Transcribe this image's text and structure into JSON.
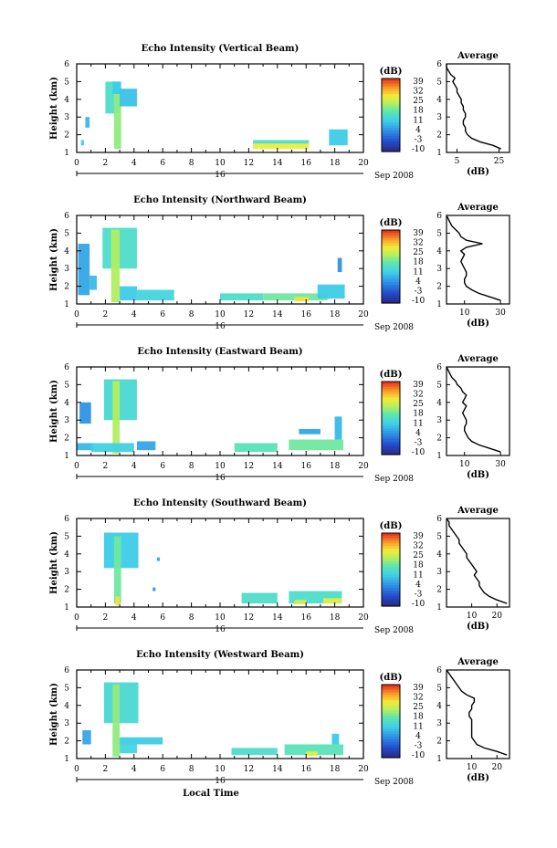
{
  "chart_data": [
    {
      "type": "heatmap",
      "title": "Echo Intensity (Vertical Beam)",
      "ylabel": "Height (km)",
      "xlabel": "",
      "x_ticks": [
        "0",
        "2",
        "4",
        "6",
        "8",
        "10",
        "12",
        "14",
        "16",
        "18",
        "20"
      ],
      "y_ticks": [
        "1",
        "2",
        "3",
        "4",
        "5",
        "6"
      ],
      "date_marker": "16",
      "date_label": "Sep 2008",
      "xlim": [
        0,
        20
      ],
      "ylim": [
        1,
        6
      ],
      "colorbar": {
        "unit": "(dB)",
        "ticks": [
          "39",
          "32",
          "25",
          "18",
          "11",
          "4",
          "-3",
          "-10"
        ],
        "range": [
          -10,
          39
        ]
      },
      "regions": [
        {
          "x": [
            2.0,
            3.0
          ],
          "y": [
            3.2,
            5.0
          ],
          "value": 14
        },
        {
          "x": [
            2.6,
            3.1
          ],
          "y": [
            1.2,
            4.3
          ],
          "value": 20
        },
        {
          "x": [
            2.5,
            3.1
          ],
          "y": [
            4.3,
            5.0
          ],
          "value": 10
        },
        {
          "x": [
            3.0,
            4.2
          ],
          "y": [
            3.6,
            4.6
          ],
          "value": 9
        },
        {
          "x": [
            0.6,
            0.9
          ],
          "y": [
            2.4,
            3.0
          ],
          "value": 8
        },
        {
          "x": [
            0.3,
            0.5
          ],
          "y": [
            1.4,
            1.7
          ],
          "value": 10
        },
        {
          "x": [
            12.3,
            16.2
          ],
          "y": [
            1.2,
            1.5
          ],
          "value": 27
        },
        {
          "x": [
            12.3,
            16.2
          ],
          "y": [
            1.5,
            1.7
          ],
          "value": 14
        },
        {
          "x": [
            17.6,
            18.9
          ],
          "y": [
            1.4,
            2.3
          ],
          "value": 10
        }
      ],
      "average": {
        "title": "Average",
        "xlabel": "(dB)",
        "x_ticks": [
          "5",
          "25"
        ],
        "xlim": [
          0,
          30
        ],
        "profile_height": [
          1.2,
          1.4,
          1.6,
          1.8,
          2.0,
          2.2,
          2.4,
          2.6,
          2.8,
          3.0,
          3.2,
          3.4,
          3.6,
          3.8,
          4.0,
          4.2,
          4.4,
          4.6,
          4.8,
          5.0,
          5.2,
          5.4,
          5.6,
          5.8,
          6.0
        ],
        "profile_db": [
          26,
          22,
          16,
          12,
          10,
          9,
          9,
          8,
          8,
          9,
          9,
          8,
          8,
          7,
          7,
          6,
          5,
          5,
          4,
          3,
          4,
          2,
          1,
          0,
          0
        ]
      }
    },
    {
      "type": "heatmap",
      "title": "Echo Intensity (Northward Beam)",
      "ylabel": "Height (km)",
      "xlabel": "",
      "x_ticks": [
        "0",
        "2",
        "4",
        "6",
        "8",
        "10",
        "12",
        "14",
        "16",
        "18",
        "20"
      ],
      "y_ticks": [
        "1",
        "2",
        "3",
        "4",
        "5",
        "6"
      ],
      "date_marker": "16",
      "date_label": "Sep 2008",
      "xlim": [
        0,
        20
      ],
      "ylim": [
        1,
        6
      ],
      "colorbar": {
        "unit": "(dB)",
        "ticks": [
          "39",
          "32",
          "25",
          "18",
          "11",
          "4",
          "-3",
          "-10"
        ],
        "range": [
          -10,
          39
        ]
      },
      "regions": [
        {
          "x": [
            0.1,
            0.9
          ],
          "y": [
            1.5,
            4.4
          ],
          "value": 6
        },
        {
          "x": [
            0.9,
            1.4
          ],
          "y": [
            1.8,
            2.6
          ],
          "value": 8
        },
        {
          "x": [
            1.8,
            4.2
          ],
          "y": [
            3.0,
            5.3
          ],
          "value": 14
        },
        {
          "x": [
            2.4,
            3.0
          ],
          "y": [
            1.1,
            5.2
          ],
          "value": 22
        },
        {
          "x": [
            3.0,
            4.2
          ],
          "y": [
            1.2,
            2.0
          ],
          "value": 10
        },
        {
          "x": [
            4.2,
            6.8
          ],
          "y": [
            1.2,
            1.8
          ],
          "value": 12
        },
        {
          "x": [
            10.0,
            13.0
          ],
          "y": [
            1.2,
            1.6
          ],
          "value": 14
        },
        {
          "x": [
            13.0,
            17.5
          ],
          "y": [
            1.2,
            1.6
          ],
          "value": 18
        },
        {
          "x": [
            15.2,
            16.2
          ],
          "y": [
            1.15,
            1.4
          ],
          "value": 28
        },
        {
          "x": [
            16.8,
            18.7
          ],
          "y": [
            1.3,
            2.1
          ],
          "value": 10
        },
        {
          "x": [
            18.2,
            18.5
          ],
          "y": [
            2.8,
            3.6
          ],
          "value": 4
        }
      ],
      "average": {
        "title": "Average",
        "xlabel": "(dB)",
        "x_ticks": [
          "10",
          "30"
        ],
        "xlim": [
          0,
          35
        ],
        "profile_height": [
          1.2,
          1.4,
          1.6,
          1.8,
          2.0,
          2.2,
          2.4,
          2.6,
          2.8,
          3.0,
          3.2,
          3.4,
          3.6,
          3.8,
          4.0,
          4.2,
          4.4,
          4.6,
          4.8,
          5.0,
          5.2,
          5.4,
          5.6,
          5.8,
          6.0
        ],
        "profile_db": [
          30,
          24,
          18,
          14,
          11,
          10,
          10,
          11,
          11,
          10,
          9,
          8,
          9,
          10,
          8,
          11,
          20,
          11,
          8,
          7,
          5,
          3,
          2,
          1,
          0
        ]
      }
    },
    {
      "type": "heatmap",
      "title": "Echo Intensity (Eastward Beam)",
      "ylabel": "Height (km)",
      "xlabel": "",
      "x_ticks": [
        "0",
        "2",
        "4",
        "6",
        "8",
        "10",
        "12",
        "14",
        "16",
        "18",
        "20"
      ],
      "y_ticks": [
        "1",
        "2",
        "3",
        "4",
        "5",
        "6"
      ],
      "date_marker": "16",
      "date_label": "Sep 2008",
      "xlim": [
        0,
        20
      ],
      "ylim": [
        1,
        6
      ],
      "colorbar": {
        "unit": "(dB)",
        "ticks": [
          "39",
          "32",
          "25",
          "18",
          "11",
          "4",
          "-3",
          "-10"
        ],
        "range": [
          -10,
          39
        ]
      },
      "regions": [
        {
          "x": [
            0.2,
            1.0
          ],
          "y": [
            2.8,
            4.0
          ],
          "value": 4
        },
        {
          "x": [
            0.0,
            1.2
          ],
          "y": [
            1.3,
            1.7
          ],
          "value": 8
        },
        {
          "x": [
            1.9,
            4.2
          ],
          "y": [
            3.0,
            5.3
          ],
          "value": 13
        },
        {
          "x": [
            2.5,
            3.0
          ],
          "y": [
            1.1,
            5.2
          ],
          "value": 22
        },
        {
          "x": [
            1.0,
            4.0
          ],
          "y": [
            1.2,
            1.7
          ],
          "value": 11
        },
        {
          "x": [
            4.2,
            5.5
          ],
          "y": [
            1.3,
            1.8
          ],
          "value": 6
        },
        {
          "x": [
            11.0,
            14.0
          ],
          "y": [
            1.2,
            1.7
          ],
          "value": 16
        },
        {
          "x": [
            14.8,
            18.6
          ],
          "y": [
            1.3,
            1.9
          ],
          "value": 18
        },
        {
          "x": [
            18.0,
            18.5
          ],
          "y": [
            1.9,
            3.2
          ],
          "value": 8
        },
        {
          "x": [
            15.5,
            17.0
          ],
          "y": [
            2.2,
            2.5
          ],
          "value": 6
        }
      ],
      "average": {
        "title": "Average",
        "xlabel": "(dB)",
        "x_ticks": [
          "10",
          "30"
        ],
        "xlim": [
          0,
          35
        ],
        "profile_height": [
          1.2,
          1.4,
          1.6,
          1.8,
          2.0,
          2.2,
          2.4,
          2.6,
          2.8,
          3.0,
          3.2,
          3.4,
          3.6,
          3.8,
          4.0,
          4.2,
          4.4,
          4.6,
          4.8,
          5.0,
          5.2,
          5.4,
          5.6,
          5.8,
          6.0
        ],
        "profile_db": [
          30,
          24,
          18,
          14,
          12,
          11,
          10,
          10,
          11,
          11,
          10,
          9,
          10,
          11,
          9,
          10,
          11,
          9,
          8,
          6,
          5,
          3,
          2,
          1,
          0
        ]
      }
    },
    {
      "type": "heatmap",
      "title": "Echo Intensity (Southward Beam)",
      "ylabel": "Height (km)",
      "xlabel": "",
      "x_ticks": [
        "0",
        "2",
        "4",
        "6",
        "8",
        "10",
        "12",
        "14",
        "16",
        "18",
        "20"
      ],
      "y_ticks": [
        "1",
        "2",
        "3",
        "4",
        "5",
        "6"
      ],
      "date_marker": "16",
      "date_label": "Sep 2008",
      "xlim": [
        0,
        20
      ],
      "ylim": [
        1,
        6
      ],
      "colorbar": {
        "unit": "(dB)",
        "ticks": [
          "39",
          "32",
          "25",
          "18",
          "11",
          "4",
          "-3",
          "-10"
        ],
        "range": [
          -10,
          39
        ]
      },
      "regions": [
        {
          "x": [
            1.9,
            4.3
          ],
          "y": [
            3.2,
            5.2
          ],
          "value": 10
        },
        {
          "x": [
            2.6,
            3.1
          ],
          "y": [
            1.2,
            5.0
          ],
          "value": 18
        },
        {
          "x": [
            2.7,
            3.0
          ],
          "y": [
            1.1,
            1.6
          ],
          "value": 28
        },
        {
          "x": [
            5.6,
            5.8
          ],
          "y": [
            3.6,
            3.8
          ],
          "value": 6
        },
        {
          "x": [
            5.3,
            5.5
          ],
          "y": [
            1.9,
            2.1
          ],
          "value": 4
        },
        {
          "x": [
            11.5,
            14.0
          ],
          "y": [
            1.2,
            1.8
          ],
          "value": 14
        },
        {
          "x": [
            14.8,
            18.5
          ],
          "y": [
            1.2,
            1.9
          ],
          "value": 14
        },
        {
          "x": [
            15.2,
            16.0
          ],
          "y": [
            1.15,
            1.4
          ],
          "value": 25
        },
        {
          "x": [
            17.2,
            18.5
          ],
          "y": [
            1.2,
            1.5
          ],
          "value": 26
        }
      ],
      "average": {
        "title": "Average",
        "xlabel": "(dB)",
        "x_ticks": [
          "10",
          "20"
        ],
        "xlim": [
          0,
          25
        ],
        "profile_height": [
          1.2,
          1.4,
          1.6,
          1.8,
          2.0,
          2.2,
          2.4,
          2.6,
          2.8,
          3.0,
          3.2,
          3.4,
          3.6,
          3.8,
          4.0,
          4.2,
          4.4,
          4.6,
          4.8,
          5.0,
          5.2,
          5.4,
          5.6,
          5.8,
          6.0
        ],
        "profile_db": [
          24,
          20,
          17,
          15,
          14,
          13,
          13,
          12,
          11,
          12,
          11,
          10,
          9,
          8,
          8,
          7,
          6,
          5,
          5,
          4,
          3,
          2,
          1,
          1,
          0
        ]
      }
    },
    {
      "type": "heatmap",
      "title": "Echo Intensity (Westward Beam)",
      "ylabel": "Height (km)",
      "xlabel": "Local Time",
      "x_ticks": [
        "0",
        "2",
        "4",
        "6",
        "8",
        "10",
        "12",
        "14",
        "16",
        "18",
        "20"
      ],
      "y_ticks": [
        "1",
        "2",
        "3",
        "4",
        "5",
        "6"
      ],
      "date_marker": "16",
      "date_label": "Sep 2008",
      "xlim": [
        0,
        20
      ],
      "ylim": [
        1,
        6
      ],
      "colorbar": {
        "unit": "(dB)",
        "ticks": [
          "39",
          "32",
          "25",
          "18",
          "11",
          "4",
          "-3",
          "-10"
        ],
        "range": [
          -10,
          39
        ]
      },
      "regions": [
        {
          "x": [
            0.4,
            1.0
          ],
          "y": [
            1.8,
            2.6
          ],
          "value": 6
        },
        {
          "x": [
            1.9,
            4.3
          ],
          "y": [
            3.0,
            5.3
          ],
          "value": 13
        },
        {
          "x": [
            2.5,
            3.0
          ],
          "y": [
            1.1,
            5.2
          ],
          "value": 20
        },
        {
          "x": [
            3.0,
            6.0
          ],
          "y": [
            1.8,
            2.2
          ],
          "value": 10
        },
        {
          "x": [
            3.0,
            4.2
          ],
          "y": [
            1.3,
            1.8
          ],
          "value": 12
        },
        {
          "x": [
            10.8,
            14.0
          ],
          "y": [
            1.2,
            1.6
          ],
          "value": 14
        },
        {
          "x": [
            14.5,
            18.6
          ],
          "y": [
            1.2,
            1.8
          ],
          "value": 16
        },
        {
          "x": [
            16.0,
            16.8
          ],
          "y": [
            1.15,
            1.4
          ],
          "value": 26
        },
        {
          "x": [
            17.8,
            18.3
          ],
          "y": [
            1.8,
            2.4
          ],
          "value": 10
        }
      ],
      "average": {
        "title": "Average",
        "xlabel": "(dB)",
        "x_ticks": [
          "10",
          "20"
        ],
        "xlim": [
          0,
          25
        ],
        "profile_height": [
          1.2,
          1.4,
          1.6,
          1.8,
          2.0,
          2.2,
          2.4,
          2.6,
          2.8,
          3.0,
          3.2,
          3.4,
          3.6,
          3.8,
          4.0,
          4.2,
          4.4,
          4.6,
          4.8,
          5.0,
          5.2,
          5.4,
          5.6,
          5.8,
          6.0
        ],
        "profile_db": [
          24,
          20,
          15,
          12,
          11,
          10,
          10,
          10,
          10,
          10,
          10,
          9,
          9,
          10,
          10,
          11,
          11,
          8,
          6,
          5,
          4,
          3,
          2,
          1,
          0
        ]
      }
    }
  ]
}
